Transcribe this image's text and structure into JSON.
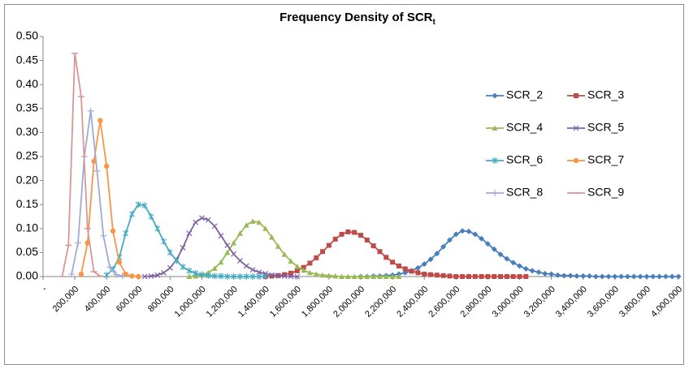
{
  "chart_data": {
    "type": "line",
    "title": "Frequency Density of SCR",
    "title_subscript": "t",
    "legend": "right",
    "grid": false,
    "xlim": [
      0,
      4000000
    ],
    "xticks": [
      {
        "value": 0,
        "label": "-"
      },
      {
        "value": 200000,
        "label": "200,000"
      },
      {
        "value": 400000,
        "label": "400,000"
      },
      {
        "value": 600000,
        "label": "600,000"
      },
      {
        "value": 800000,
        "label": "800,000"
      },
      {
        "value": 1000000,
        "label": "1,000,000"
      },
      {
        "value": 1200000,
        "label": "1,200,000"
      },
      {
        "value": 1400000,
        "label": "1,400,000"
      },
      {
        "value": 1600000,
        "label": "1,600,000"
      },
      {
        "value": 1800000,
        "label": "1,800,000"
      },
      {
        "value": 2000000,
        "label": "2,000,000"
      },
      {
        "value": 2200000,
        "label": "2,200,000"
      },
      {
        "value": 2400000,
        "label": "2,400,000"
      },
      {
        "value": 2600000,
        "label": "2,600,000"
      },
      {
        "value": 2800000,
        "label": "2,800,000"
      },
      {
        "value": 3000000,
        "label": "3,000,000"
      },
      {
        "value": 3200000,
        "label": "3,200,000"
      },
      {
        "value": 3400000,
        "label": "3,400,000"
      },
      {
        "value": 3600000,
        "label": "3,600,000"
      },
      {
        "value": 3800000,
        "label": "3,800,000"
      },
      {
        "value": 4000000,
        "label": "4,000,000"
      }
    ],
    "ylim": [
      0,
      0.5
    ],
    "yticks": [
      {
        "value": 0,
        "label": "0.00"
      },
      {
        "value": 0.05,
        "label": "0.05"
      },
      {
        "value": 0.1,
        "label": "0.10"
      },
      {
        "value": 0.15,
        "label": "0.15"
      },
      {
        "value": 0.2,
        "label": "0.20"
      },
      {
        "value": 0.25,
        "label": "0.25"
      },
      {
        "value": 0.3,
        "label": "0.30"
      },
      {
        "value": 0.35,
        "label": "0.35"
      },
      {
        "value": 0.4,
        "label": "0.40"
      },
      {
        "value": 0.45,
        "label": "0.45"
      },
      {
        "value": 0.5,
        "label": "0.50"
      }
    ],
    "series": [
      {
        "name": "SCR_2",
        "color": "#4a7ebb",
        "marker": "diamond",
        "x": [
          2000000,
          2040000,
          2080000,
          2120000,
          2160000,
          2200000,
          2240000,
          2280000,
          2320000,
          2360000,
          2400000,
          2440000,
          2480000,
          2520000,
          2560000,
          2600000,
          2640000,
          2680000,
          2720000,
          2760000,
          2800000,
          2840000,
          2880000,
          2920000,
          2960000,
          3000000,
          3040000,
          3080000,
          3120000,
          3160000,
          3200000,
          3240000,
          3280000,
          3320000,
          3360000,
          3400000,
          3440000,
          3480000,
          3520000,
          3560000,
          3600000,
          3640000,
          3680000,
          3720000,
          3760000,
          3800000,
          3840000,
          3880000,
          3920000,
          3960000,
          4000000
        ],
        "values": [
          0,
          0,
          0.001,
          0.001,
          0.002,
          0.003,
          0.005,
          0.008,
          0.012,
          0.018,
          0.026,
          0.036,
          0.048,
          0.062,
          0.076,
          0.088,
          0.095,
          0.094,
          0.088,
          0.079,
          0.068,
          0.057,
          0.046,
          0.037,
          0.029,
          0.022,
          0.016,
          0.012,
          0.009,
          0.006,
          0.005,
          0.003,
          0.002,
          0.002,
          0.001,
          0.001,
          0.001,
          0,
          0,
          0,
          0,
          0,
          0,
          0,
          0,
          0,
          0,
          0,
          0,
          0,
          0
        ]
      },
      {
        "name": "SCR_3",
        "color": "#be4b48",
        "marker": "square",
        "x": [
          1400000,
          1440000,
          1480000,
          1520000,
          1560000,
          1600000,
          1640000,
          1680000,
          1720000,
          1760000,
          1800000,
          1840000,
          1880000,
          1920000,
          1960000,
          2000000,
          2040000,
          2080000,
          2120000,
          2160000,
          2200000,
          2240000,
          2280000,
          2320000,
          2360000,
          2400000,
          2440000,
          2480000,
          2520000,
          2560000,
          2600000,
          2640000,
          2680000,
          2720000,
          2760000,
          2800000,
          2840000,
          2880000,
          2920000,
          2960000,
          3000000,
          3040000
        ],
        "values": [
          0,
          0.001,
          0.002,
          0.004,
          0.007,
          0.012,
          0.019,
          0.028,
          0.039,
          0.052,
          0.065,
          0.078,
          0.088,
          0.093,
          0.092,
          0.086,
          0.076,
          0.064,
          0.052,
          0.04,
          0.03,
          0.022,
          0.016,
          0.011,
          0.008,
          0.005,
          0.004,
          0.003,
          0.002,
          0.001,
          0,
          0,
          0,
          0,
          0,
          0,
          0,
          0,
          0,
          0,
          0,
          0
        ]
      },
      {
        "name": "SCR_4",
        "color": "#98b954",
        "marker": "triangle",
        "x": [
          920000,
          960000,
          1000000,
          1040000,
          1080000,
          1120000,
          1160000,
          1200000,
          1240000,
          1280000,
          1320000,
          1360000,
          1400000,
          1440000,
          1480000,
          1520000,
          1560000,
          1600000,
          1640000,
          1680000,
          1720000,
          1760000,
          1800000,
          1840000,
          1880000,
          1920000,
          1960000,
          2000000,
          2040000,
          2080000,
          2120000,
          2160000,
          2200000,
          2240000
        ],
        "values": [
          0,
          0.001,
          0.003,
          0.008,
          0.017,
          0.03,
          0.05,
          0.07,
          0.09,
          0.107,
          0.115,
          0.113,
          0.1,
          0.082,
          0.063,
          0.046,
          0.032,
          0.021,
          0.013,
          0.008,
          0.005,
          0.003,
          0.002,
          0.001,
          0,
          0,
          0,
          0,
          0,
          0,
          0,
          0,
          0,
          0
        ]
      },
      {
        "name": "SCR_5",
        "color": "#7d60a0",
        "marker": "x",
        "x": [
          640000,
          680000,
          720000,
          760000,
          800000,
          840000,
          880000,
          920000,
          960000,
          1000000,
          1040000,
          1080000,
          1120000,
          1160000,
          1200000,
          1240000,
          1280000,
          1320000,
          1360000,
          1400000,
          1440000,
          1480000,
          1520000,
          1560000,
          1600000
        ],
        "values": [
          0,
          0.001,
          0.003,
          0.008,
          0.018,
          0.035,
          0.06,
          0.09,
          0.113,
          0.122,
          0.118,
          0.105,
          0.085,
          0.065,
          0.047,
          0.033,
          0.022,
          0.014,
          0.009,
          0.006,
          0.003,
          0.002,
          0.001,
          0,
          0
        ]
      },
      {
        "name": "SCR_6",
        "color": "#46aac5",
        "marker": "asterisk",
        "x": [
          400000,
          440000,
          480000,
          520000,
          560000,
          600000,
          640000,
          680000,
          720000,
          760000,
          800000,
          840000,
          880000,
          920000,
          960000,
          1000000,
          1040000,
          1080000,
          1120000,
          1160000,
          1200000,
          1240000,
          1280000,
          1320000,
          1360000,
          1400000
        ],
        "values": [
          0.003,
          0.015,
          0.04,
          0.09,
          0.13,
          0.15,
          0.148,
          0.125,
          0.1,
          0.073,
          0.05,
          0.033,
          0.02,
          0.012,
          0.007,
          0.004,
          0.002,
          0.001,
          0.001,
          0,
          0,
          0,
          0,
          0,
          0,
          0
        ]
      },
      {
        "name": "SCR_7",
        "color": "#f79646",
        "marker": "circle",
        "x": [
          240000,
          280000,
          320000,
          360000,
          400000,
          440000,
          480000,
          520000,
          560000,
          600000
        ],
        "values": [
          0.005,
          0.07,
          0.24,
          0.325,
          0.23,
          0.095,
          0.03,
          0.005,
          0.001,
          0
        ]
      },
      {
        "name": "SCR_8",
        "color": "#9dabd6",
        "marker": "plus",
        "x": [
          180000,
          220000,
          260000,
          300000,
          340000,
          380000,
          420000,
          460000,
          500000
        ],
        "values": [
          0.005,
          0.07,
          0.25,
          0.345,
          0.22,
          0.085,
          0.02,
          0.004,
          0.001
        ]
      },
      {
        "name": "SCR_9",
        "color": "#d99694",
        "marker": "dash",
        "x": [
          120000,
          160000,
          200000,
          240000,
          280000,
          320000,
          360000
        ],
        "values": [
          0,
          0.065,
          0.465,
          0.375,
          0.1,
          0.01,
          0.001
        ]
      }
    ]
  }
}
